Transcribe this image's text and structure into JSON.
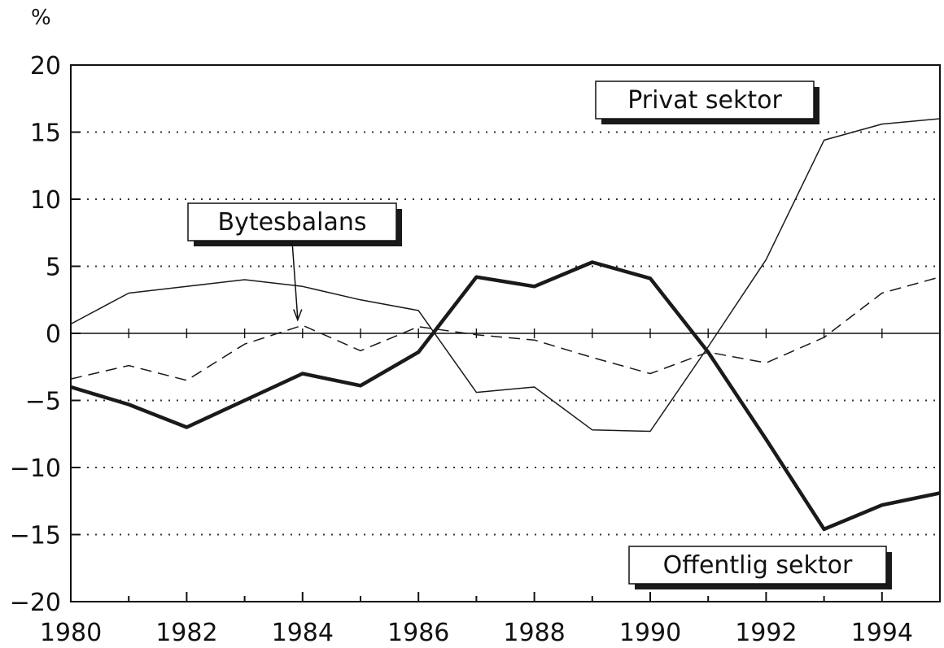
{
  "chart_data": {
    "type": "line",
    "ylabel": "%",
    "x": [
      1980,
      1981,
      1982,
      1983,
      1984,
      1985,
      1986,
      1987,
      1988,
      1989,
      1990,
      1991,
      1992,
      1993,
      1994,
      1995
    ],
    "xlim": [
      1980,
      1995
    ],
    "ylim": [
      -20,
      20
    ],
    "x_ticks": [
      "1980",
      "1982",
      "1984",
      "1986",
      "1988",
      "1990",
      "1992",
      "1994"
    ],
    "y_ticks": [
      "20",
      "15",
      "10",
      "5",
      "0",
      "−5",
      "−10",
      "−15",
      "−20"
    ],
    "grid": "horizontal dotted",
    "series": [
      {
        "name": "Privat sektor",
        "style": "thin solid",
        "values": [
          0.7,
          3.0,
          3.5,
          4.0,
          3.5,
          2.5,
          1.7,
          -4.4,
          -4.0,
          -7.2,
          -7.3,
          -1.0,
          5.5,
          14.4,
          15.6,
          16.0
        ]
      },
      {
        "name": "Bytesbalans",
        "style": "dashed",
        "values": [
          -3.4,
          -2.4,
          -3.5,
          -0.8,
          0.6,
          -1.3,
          0.5,
          -0.1,
          -0.5,
          -1.8,
          -3.0,
          -1.4,
          -2.2,
          -0.3,
          3.0,
          4.2
        ]
      },
      {
        "name": "Offentlig sektor",
        "style": "thick solid",
        "values": [
          -4.0,
          -5.3,
          -7.0,
          -5.0,
          -3.0,
          -3.9,
          -1.4,
          4.2,
          3.5,
          5.3,
          4.1,
          -1.4,
          -7.9,
          -14.6,
          -12.8,
          -11.9
        ]
      }
    ],
    "annotations": [
      {
        "text": "Privat sektor",
        "series": "Privat sektor"
      },
      {
        "text": "Bytesbalans",
        "series": "Bytesbalans",
        "arrow_to": [
          1984,
          1.0
        ]
      },
      {
        "text": "Offentlig sektor",
        "series": "Offentlig sektor"
      }
    ]
  }
}
